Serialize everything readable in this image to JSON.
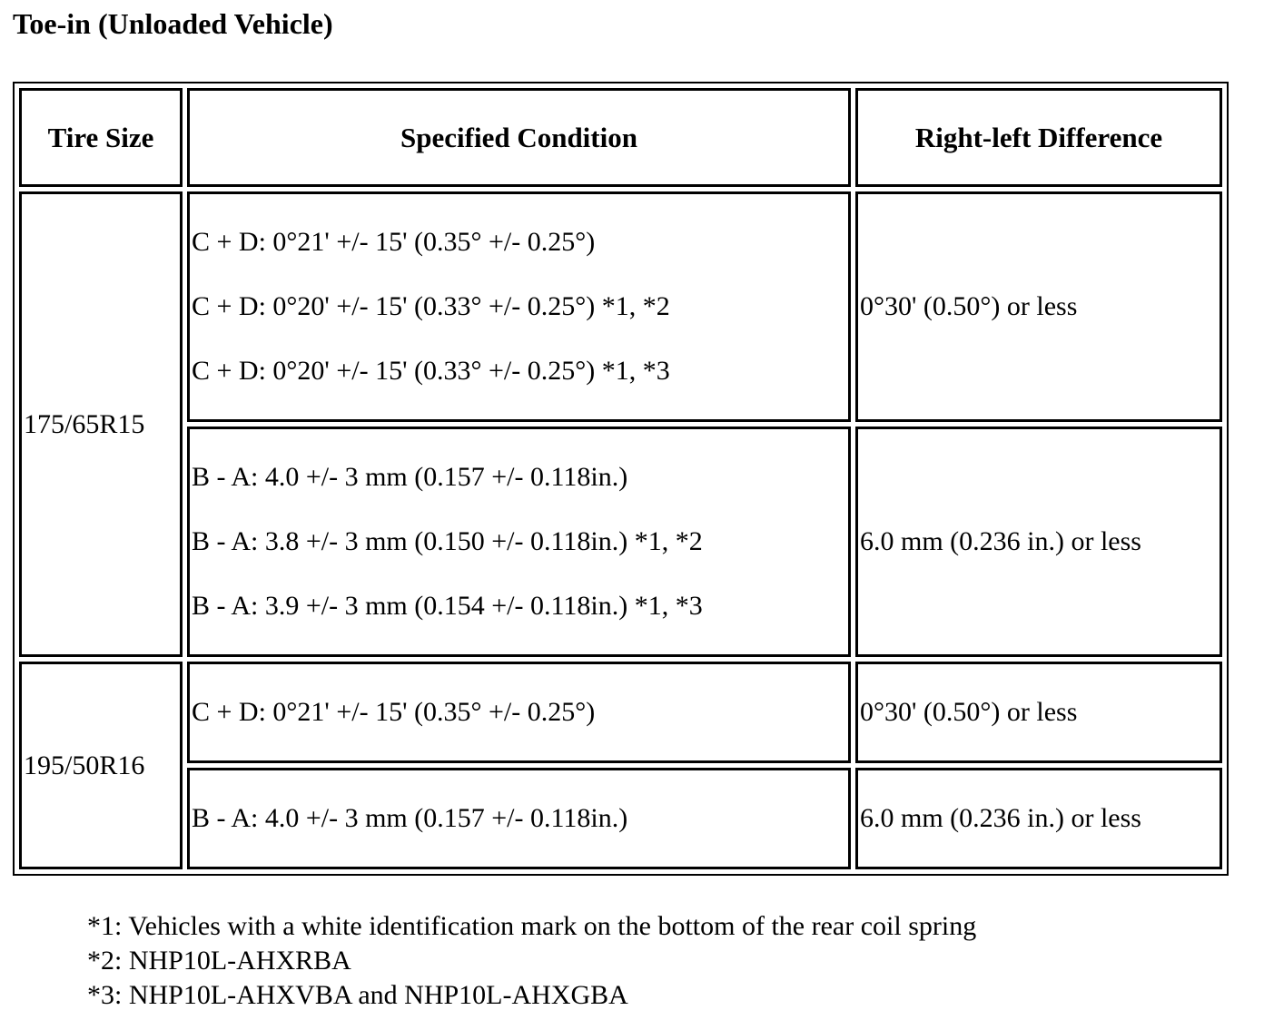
{
  "title": "Toe-in (Unloaded Vehicle)",
  "table": {
    "headers": [
      "Tire Size",
      "Specified Condition",
      "Right-left Difference"
    ],
    "rows": [
      {
        "tire_size": "175/65R15",
        "sub_rows": [
          {
            "conditions": [
              "C + D: 0°21' +/- 15' (0.35° +/- 0.25°)",
              "C + D: 0°20' +/- 15' (0.33° +/- 0.25°) *1, *2",
              "C + D: 0°20' +/- 15' (0.33° +/- 0.25°) *1, *3"
            ],
            "difference": "0°30' (0.50°) or less"
          },
          {
            "conditions": [
              "B - A: 4.0 +/- 3 mm (0.157 +/- 0.118in.)",
              "B - A: 3.8 +/- 3 mm (0.150 +/- 0.118in.) *1, *2",
              "B - A: 3.9 +/- 3 mm (0.154 +/- 0.118in.) *1, *3"
            ],
            "difference": "6.0 mm (0.236 in.) or less"
          }
        ]
      },
      {
        "tire_size": "195/50R16",
        "sub_rows": [
          {
            "conditions": [
              "C + D: 0°21' +/- 15' (0.35° +/- 0.25°)"
            ],
            "difference": "0°30' (0.50°) or less"
          },
          {
            "conditions": [
              "B - A: 4.0 +/- 3 mm (0.157 +/- 0.118in.)"
            ],
            "difference": "6.0 mm (0.236 in.) or less"
          }
        ]
      }
    ]
  },
  "footnotes": [
    "*1: Vehicles with a white identification mark on the bottom of the rear coil spring",
    "*2: NHP10L-AHXRBA",
    "*3: NHP10L-AHXVBA and NHP10L-AHXGBA"
  ]
}
